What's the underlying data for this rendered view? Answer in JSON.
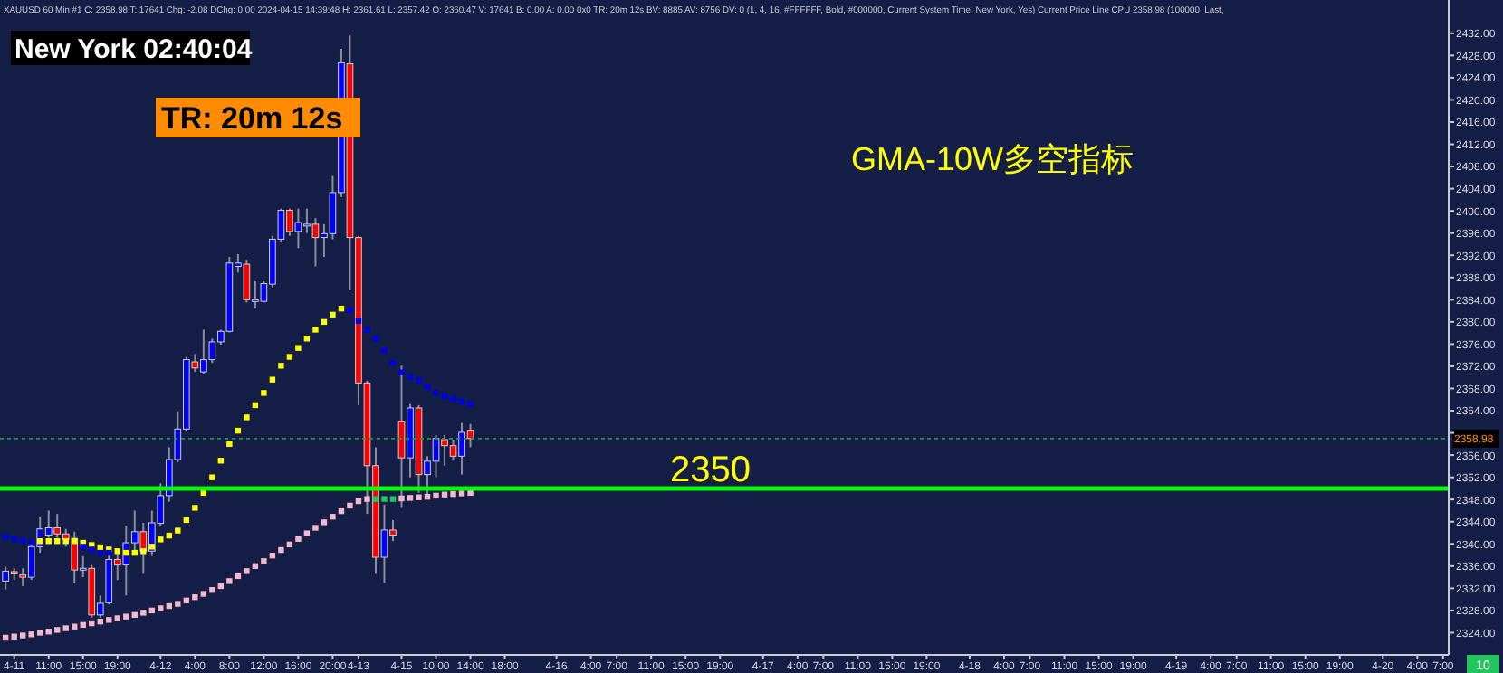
{
  "chart_data": {
    "type": "candlestick",
    "title": "GMA-10W多空指标",
    "categories": [
      null,
      "4-11",
      null,
      null,
      null,
      "11:00",
      null,
      null,
      null,
      "15:00",
      null,
      null,
      null,
      "19:00",
      null,
      null,
      null,
      null,
      "4-12",
      null,
      null,
      null,
      "4:00",
      null,
      null,
      null,
      "8:00",
      null,
      null,
      null,
      "12:00",
      null,
      null,
      null,
      "16:00",
      null,
      null,
      null,
      "20:00",
      null,
      null,
      "4-13",
      null,
      null,
      null,
      null,
      "4-15",
      null,
      null,
      null,
      "10:00",
      null,
      null,
      null,
      "14:00",
      null,
      null,
      null,
      "18:00",
      null,
      null,
      null,
      null,
      null,
      "4-16",
      null,
      null,
      null,
      "4:00",
      null,
      null,
      "7:00",
      null,
      null,
      null,
      "11:00",
      null,
      null,
      null,
      "15:00",
      null,
      null,
      null,
      "19:00",
      null,
      null,
      null,
      null,
      "4-17",
      null,
      null,
      null,
      "4:00",
      null,
      null,
      "7:00",
      null,
      null,
      null,
      "11:00",
      null,
      null,
      null,
      "15:00",
      null,
      null,
      null,
      "19:00",
      null,
      null,
      null,
      null,
      "4-18",
      null,
      null,
      null,
      "4:00",
      null,
      null,
      "7:00",
      null,
      null,
      null,
      "11:00",
      null,
      null,
      null,
      "15:00",
      null,
      null,
      null,
      "19:00",
      null,
      null,
      null,
      null,
      "4-19",
      null,
      null,
      null,
      "4:00",
      null,
      null,
      "7:00",
      null,
      null,
      null,
      "11:00",
      null,
      null,
      null,
      "15:00",
      null,
      null,
      null,
      "19:00",
      null,
      null,
      null,
      null,
      "4-20",
      null,
      null,
      null,
      "4:00",
      null,
      null,
      "7:00"
    ],
    "ohlc": [
      [
        2333.3,
        2335.9,
        2331.8,
        2335.1
      ],
      [
        2335.0,
        2335.6,
        2333.5,
        2334.6
      ],
      [
        2334.4,
        2335.6,
        2332.4,
        2334.0
      ],
      [
        2334.0,
        2340.5,
        2333.5,
        2339.5
      ],
      [
        2339.5,
        2344.9,
        2338.4,
        2342.7
      ],
      [
        2341.6,
        2346.0,
        2341.1,
        2342.9
      ],
      [
        2342.9,
        2345.4,
        2341.1,
        2341.8
      ],
      [
        2341.8,
        2342.7,
        2339.5,
        2340.8
      ],
      [
        2341.0,
        2342.2,
        2332.9,
        2335.3
      ],
      [
        2335.3,
        2337.8,
        2334.0,
        2335.6
      ],
      [
        2335.6,
        2336.2,
        2326.7,
        2327.2
      ],
      [
        2327.2,
        2330.7,
        2326.7,
        2329.3
      ],
      [
        2329.4,
        2338.3,
        2329.1,
        2337.2
      ],
      [
        2337.2,
        2338.3,
        2333.5,
        2336.2
      ],
      [
        2336.2,
        2343.3,
        2330.7,
        2340.2
      ],
      [
        2340.2,
        2346.0,
        2338.3,
        2342.2
      ],
      [
        2342.2,
        2343.8,
        2334.6,
        2338.7
      ],
      [
        2338.7,
        2346.0,
        2337.8,
        2343.8
      ],
      [
        2343.7,
        2350.9,
        2343.3,
        2348.7
      ],
      [
        2348.7,
        2357.4,
        2347.6,
        2355.2
      ],
      [
        2355.2,
        2363.9,
        2354.7,
        2360.7
      ],
      [
        2360.7,
        2373.7,
        2360.4,
        2373.2
      ],
      [
        2372.8,
        2374.2,
        2371.0,
        2371.7
      ],
      [
        2371.0,
        2378.6,
        2370.7,
        2373.2
      ],
      [
        2373.2,
        2377.0,
        2372.6,
        2376.4
      ],
      [
        2376.4,
        2378.6,
        2375.9,
        2378.3
      ],
      [
        2378.3,
        2391.7,
        2378.1,
        2390.6
      ],
      [
        2390.0,
        2392.2,
        2388.9,
        2390.6
      ],
      [
        2390.4,
        2391.2,
        2383.5,
        2384.0
      ],
      [
        2383.7,
        2387.3,
        2382.4,
        2384.0
      ],
      [
        2383.7,
        2387.3,
        2383.5,
        2386.9
      ],
      [
        2386.8,
        2395.5,
        2386.2,
        2394.9
      ],
      [
        2394.9,
        2400.4,
        2394.4,
        2400.1
      ],
      [
        2400.1,
        2400.4,
        2395.5,
        2396.3
      ],
      [
        2396.3,
        2400.4,
        2393.3,
        2397.9
      ],
      [
        2397.4,
        2400.4,
        2396.0,
        2397.6
      ],
      [
        2397.6,
        2398.7,
        2390.0,
        2395.2
      ],
      [
        2395.2,
        2397.6,
        2391.7,
        2395.9
      ],
      [
        2395.9,
        2406.3,
        2394.9,
        2403.3
      ],
      [
        2403.3,
        2429.2,
        2402.5,
        2426.7
      ],
      [
        2426.5,
        2431.6,
        2385.7,
        2395.2
      ],
      [
        2395.2,
        2395.5,
        2365.0,
        2369.0
      ],
      [
        2369.0,
        2369.4,
        2345.4,
        2354.1
      ],
      [
        2354.1,
        2357.4,
        2334.6,
        2337.6
      ],
      [
        2337.6,
        2347.1,
        2333.0,
        2342.5
      ],
      [
        2342.5,
        2344.3,
        2340.5,
        2341.6
      ],
      [
        2362.1,
        2372.1,
        2346.5,
        2355.5
      ],
      [
        2355.5,
        2365.2,
        2352.0,
        2364.5
      ],
      [
        2364.5,
        2365.0,
        2349.2,
        2352.5
      ],
      [
        2352.5,
        2355.8,
        2348.7,
        2354.9
      ],
      [
        2354.9,
        2359.6,
        2352.0,
        2359.0
      ],
      [
        2358.8,
        2359.6,
        2354.1,
        2357.7
      ],
      [
        2357.7,
        2358.8,
        2355.2,
        2355.8
      ],
      [
        2355.8,
        2361.8,
        2352.5,
        2360.1
      ],
      [
        2360.47,
        2361.61,
        2357.42,
        2358.98
      ],
      null,
      null,
      null,
      null,
      null,
      null,
      null,
      null,
      null,
      null,
      null,
      null,
      null,
      null,
      null,
      null,
      null,
      null,
      null,
      null,
      null,
      null,
      null,
      null,
      null,
      null,
      null,
      null,
      null,
      null,
      null,
      null,
      null,
      null,
      null,
      null,
      null,
      null,
      null,
      null,
      null,
      null,
      null,
      null,
      null,
      null,
      null,
      null,
      null,
      null,
      null,
      null,
      null,
      null,
      null,
      null,
      null,
      null,
      null,
      null,
      null,
      null,
      null,
      null,
      null,
      null,
      null,
      null,
      null,
      null,
      null,
      null,
      null,
      null,
      null,
      null,
      null,
      null,
      null,
      null,
      null,
      null,
      null,
      null,
      null,
      null,
      null,
      null,
      null,
      null,
      null,
      null,
      null,
      null,
      null,
      null,
      null,
      null,
      null,
      null,
      null,
      null,
      null,
      null,
      null,
      null,
      null,
      null,
      null,
      null,
      null,
      null,
      null
    ],
    "colors": [
      "#0000ff",
      "#ff0000",
      "#ff0000",
      "#0000ff",
      "#0000ff",
      "#0000ff",
      "#ff0000",
      "#ff0000",
      "#ff0000",
      "#0000ff",
      "#ff0000",
      "#0000ff",
      "#0000ff",
      "#ff0000",
      "#0000ff",
      "#0000ff",
      "#ff0000",
      "#0000ff",
      "#0000ff",
      "#0000ff",
      "#0000ff",
      "#0000ff",
      "#ff0000",
      "#0000ff",
      "#0000ff",
      "#0000ff",
      "#0000ff",
      "#0000ff",
      "#ff0000",
      "#0000ff",
      "#0000ff",
      "#0000ff",
      "#0000ff",
      "#ff0000",
      "#0000ff",
      "#0000ff",
      "#ff0000",
      "#0000ff",
      "#0000ff",
      "#0000ff",
      "#ff0000",
      "#ff0000",
      "#ff0000",
      "#ff0000",
      "#0000ff",
      "#ff0000",
      "#ff0000",
      "#0000ff",
      "#ff0000",
      "#0000ff",
      "#0000ff",
      "#ff0000",
      "#ff0000",
      "#0000ff",
      "#ff0000",
      null,
      null,
      null,
      null,
      null,
      null,
      null,
      null,
      null,
      null,
      null,
      null,
      null,
      null,
      null,
      null,
      null,
      null,
      null,
      null,
      null,
      null,
      null,
      null,
      null,
      null,
      null,
      null,
      null,
      null,
      null,
      null,
      null,
      null,
      null,
      null,
      null,
      null,
      null,
      null,
      null,
      null,
      null,
      null,
      null,
      null,
      null,
      null,
      null,
      null,
      null,
      null,
      null,
      null,
      null,
      null,
      null,
      null,
      null,
      null,
      null,
      null,
      null,
      null,
      null,
      null,
      null,
      null,
      null,
      null,
      null,
      null,
      null,
      null,
      null,
      null,
      null,
      null,
      null,
      null,
      null,
      null,
      null,
      null,
      null,
      null,
      null,
      null,
      null,
      null,
      null,
      null,
      null,
      null,
      null,
      null,
      null,
      null,
      null,
      null,
      null,
      null,
      null,
      null,
      null,
      null,
      null,
      null,
      null,
      null,
      null,
      null,
      null
    ],
    "series": [
      {
        "type": "scatter",
        "color": "#f4b8cc",
        "values": [
          2323.1,
          2323.3,
          2323.5,
          2323.7,
          2324.0,
          2324.2,
          2324.5,
          2324.8,
          2325.1,
          2325.4,
          2325.7,
          2326.0,
          2326.3,
          2326.6,
          2326.9,
          2327.2,
          2327.6,
          2328.0,
          2328.4,
          2328.8,
          2329.2,
          2329.8,
          2330.4,
          2331.0,
          2331.7,
          2332.4,
          2333.3,
          2334.2,
          2335.1,
          2336.0,
          2336.9,
          2337.9,
          2338.9,
          2339.9,
          2340.9,
          2341.9,
          2342.9,
          2343.9,
          2344.9,
          2345.9,
          2346.9,
          2347.7,
          2348.1,
          null,
          null,
          null,
          2348.2,
          2348.3,
          2348.4,
          2348.5,
          2348.7,
          2348.9,
          2349.0,
          2349.1,
          2349.2,
          null,
          null,
          null,
          null,
          null,
          null,
          null,
          null,
          null,
          null,
          null,
          null,
          null,
          null,
          null,
          null,
          null,
          null,
          null,
          null,
          null,
          null,
          null,
          null,
          null,
          null,
          null,
          null,
          null,
          null,
          null,
          null,
          null,
          null,
          null,
          null,
          null,
          null,
          null,
          null,
          null,
          null,
          null,
          null,
          null,
          null,
          null,
          null,
          null,
          null,
          null,
          null,
          null,
          null,
          null,
          null,
          null,
          null,
          null,
          null,
          null,
          null,
          null,
          null,
          null,
          null,
          null,
          null,
          null,
          null,
          null,
          null,
          null,
          null,
          null,
          null,
          null,
          null,
          null,
          null,
          null,
          null,
          null,
          null,
          null,
          null,
          null,
          null,
          null,
          null,
          null,
          null,
          null,
          null,
          null,
          null,
          null,
          null,
          null,
          null,
          null,
          null,
          null,
          null,
          null,
          null,
          null,
          null,
          null,
          null,
          null,
          null,
          null
        ]
      },
      {
        "type": "scatter",
        "color": "#22c55e",
        "values": [
          null,
          null,
          null,
          null,
          null,
          null,
          null,
          null,
          null,
          null,
          null,
          null,
          null,
          null,
          null,
          null,
          null,
          null,
          null,
          null,
          null,
          null,
          null,
          null,
          null,
          null,
          null,
          null,
          null,
          null,
          null,
          null,
          null,
          null,
          null,
          null,
          null,
          null,
          null,
          null,
          null,
          null,
          null,
          2348.1,
          2348.1,
          2348.1,
          null,
          null,
          null,
          null,
          null,
          null,
          null,
          null,
          null,
          null,
          null,
          null,
          null,
          null,
          null,
          null,
          null,
          null,
          null,
          null,
          null,
          null,
          null,
          null,
          null,
          null,
          null,
          null,
          null,
          null,
          null,
          null,
          null,
          null,
          null,
          null,
          null,
          null,
          null,
          null,
          null,
          null,
          null,
          null,
          null,
          null,
          null,
          null,
          null,
          null,
          null,
          null,
          null,
          null,
          null,
          null,
          null,
          null,
          null,
          null,
          null,
          null,
          null,
          null,
          null,
          null,
          null,
          null,
          null,
          null,
          null,
          null,
          null,
          null,
          null,
          null,
          null,
          null,
          null,
          null,
          null,
          null,
          null,
          null,
          null,
          null,
          null,
          null,
          null,
          null,
          null,
          null,
          null,
          null,
          null,
          null,
          null,
          null,
          null,
          null,
          null,
          null,
          null,
          null,
          null,
          null,
          null,
          null,
          null,
          null,
          null,
          null,
          null,
          null,
          null,
          null,
          null,
          null,
          null,
          null,
          null,
          null
        ]
      },
      {
        "type": "scatter",
        "color": "#ffff00",
        "values": [
          null,
          null,
          null,
          null,
          2340.5,
          2340.5,
          2340.5,
          2340.5,
          2340.5,
          2340.2,
          2339.8,
          2339.4,
          2339.0,
          2338.7,
          2338.4,
          2338.4,
          2338.7,
          2339.5,
          2340.8,
          2341.5,
          2342.4,
          2344.3,
          2346.5,
          2349.2,
          2352.0,
          2355.0,
          2358.0,
          2360.4,
          2362.8,
          2365.0,
          2367.2,
          2369.6,
          2372.1,
          2373.7,
          2375.3,
          2377.0,
          2378.6,
          2380.0,
          2381.3,
          2382.4,
          null,
          null,
          null,
          null,
          null,
          null,
          null,
          null,
          null,
          null,
          null,
          null,
          null,
          null,
          null,
          null,
          null,
          null,
          null,
          null,
          null,
          null,
          null,
          null,
          null,
          null,
          null,
          null,
          null,
          null,
          null,
          null,
          null,
          null,
          null,
          null,
          null,
          null,
          null,
          null,
          null,
          null,
          null,
          null,
          null,
          null,
          null,
          null,
          null,
          null,
          null,
          null,
          null,
          null,
          null,
          null,
          null,
          null,
          null,
          null,
          null,
          null,
          null,
          null,
          null,
          null,
          null,
          null,
          null,
          null,
          null,
          null,
          null,
          null,
          null,
          null,
          null,
          null,
          null,
          null,
          null,
          null,
          null,
          null,
          null,
          null,
          null,
          null,
          null,
          null,
          null,
          null,
          null,
          null,
          null,
          null,
          null,
          null,
          null,
          null,
          null,
          null,
          null,
          null,
          null,
          null,
          null,
          null,
          null,
          null,
          null,
          null,
          null,
          null,
          null,
          null,
          null,
          null,
          null,
          null,
          null,
          null,
          null,
          null,
          null,
          null,
          null,
          null
        ]
      },
      {
        "type": "scatter",
        "color": "#0000e6",
        "values": [
          2341.3,
          2340.9,
          2340.6,
          2340.2,
          null,
          null,
          null,
          null,
          null,
          2339.5,
          2339.0,
          2338.4,
          2338.4,
          null,
          null,
          null,
          null,
          null,
          null,
          null,
          null,
          null,
          null,
          null,
          null,
          null,
          null,
          null,
          null,
          null,
          null,
          null,
          null,
          null,
          null,
          null,
          null,
          null,
          null,
          null,
          2382.1,
          2380.2,
          2378.6,
          2377.0,
          2374.8,
          2372.6,
          2370.9,
          2370.1,
          2369.4,
          2368.3,
          2367.2,
          2366.6,
          2366.1,
          2365.6,
          2365.2,
          null,
          null,
          null,
          null,
          null,
          null,
          null,
          null,
          null,
          null,
          null,
          null,
          null,
          null,
          null,
          null,
          null,
          null,
          null,
          null,
          null,
          null,
          null,
          null,
          null,
          null,
          null,
          null,
          null,
          null,
          null,
          null,
          null,
          null,
          null,
          null,
          null,
          null,
          null,
          null,
          null,
          null,
          null,
          null,
          null,
          null,
          null,
          null,
          null,
          null,
          null,
          null,
          null,
          null,
          null,
          null,
          null,
          null,
          null,
          null,
          null,
          null,
          null,
          null,
          null,
          null,
          null,
          null,
          null,
          null,
          null,
          null,
          null,
          null,
          null,
          null,
          null,
          null,
          null,
          null,
          null,
          null,
          null,
          null,
          null,
          null,
          null,
          null,
          null,
          null,
          null,
          null,
          null,
          null,
          null,
          null,
          null,
          null,
          null,
          null,
          null,
          null,
          null,
          null,
          null,
          null,
          null,
          null,
          null,
          null,
          null,
          null,
          null
        ]
      }
    ],
    "marker": "square",
    "ylim": [
      2320,
      2438
    ],
    "yticks": [
      {
        "value": 2324,
        "label": "2324.00"
      },
      {
        "value": 2328,
        "label": "2328.00"
      },
      {
        "value": 2332,
        "label": "2332.00"
      },
      {
        "value": 2336,
        "label": "2336.00"
      },
      {
        "value": 2340,
        "label": "2340.00"
      },
      {
        "value": 2344,
        "label": "2344.00"
      },
      {
        "value": 2348,
        "label": "2348.00"
      },
      {
        "value": 2352,
        "label": "2352.00"
      },
      {
        "value": 2356,
        "label": "2356.00"
      },
      {
        "value": 2360,
        "label": null
      },
      {
        "value": 2364,
        "label": "2364.00"
      },
      {
        "value": 2368,
        "label": "2368.00"
      },
      {
        "value": 2372,
        "label": "2372.00"
      },
      {
        "value": 2376,
        "label": "2376.00"
      },
      {
        "value": 2380,
        "label": "2380.00"
      },
      {
        "value": 2384,
        "label": "2384.00"
      },
      {
        "value": 2388,
        "label": "2388.00"
      },
      {
        "value": 2392,
        "label": "2392.00"
      },
      {
        "value": 2396,
        "label": "2396.00"
      },
      {
        "value": 2400,
        "label": "2400.00"
      },
      {
        "value": 2404,
        "label": "2404.00"
      },
      {
        "value": 2408,
        "label": "2408.00"
      },
      {
        "value": 2412,
        "label": "2412.00"
      },
      {
        "value": 2416,
        "label": "2416.00"
      },
      {
        "value": 2420,
        "label": "2420.00"
      },
      {
        "value": 2424,
        "label": "2424.00"
      },
      {
        "value": 2428,
        "label": "2428.00"
      },
      {
        "value": 2432,
        "label": "2432.00"
      }
    ],
    "ref_lines": [
      {
        "axis": "y",
        "value": 2350,
        "label": "2350",
        "color": "#00ff00",
        "line_style": "solid"
      },
      {
        "axis": "y",
        "value": 2358.98,
        "label": "2358.98",
        "color": "#1f9d3a",
        "line_style": "dotted"
      }
    ],
    "annotations": [
      "XAUUSD 60 Min #1 C: 2358.98 T: 17641 Chg: -2.08 DChg: 0.00 2024-04-15 14:39:48 H: 2361.61 L: 2357.42 O: 2360.47 V: 17641 B: 0.00 A: 0.00 0x0 TR: 20m 12s BV: 8885 AV: 8756 DV: 0 (1, 4, 16, #FFFFFF, Bold, #000000, Current System Time, New York, Yes) Current Price Line CPU 2358.98 (100000, Last,",
      "New York 02:40:04",
      "TR: 20m 12s",
      "10"
    ]
  }
}
